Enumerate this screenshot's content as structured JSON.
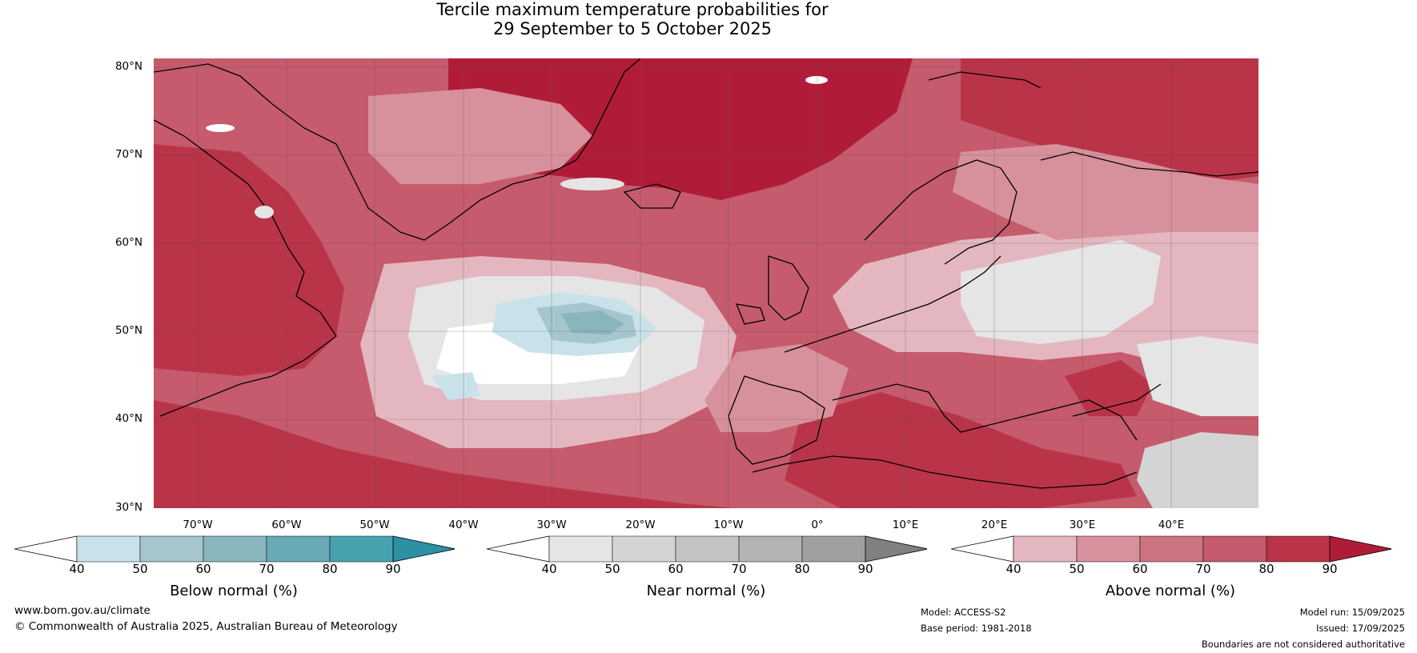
{
  "title_line1": "Tercile maximum temperature probabilities for",
  "title_line2": "29 September to 5 October 2025",
  "lat_labels": [
    "80°N",
    "70°N",
    "60°N",
    "50°N",
    "40°N",
    "30°N"
  ],
  "lon_labels": [
    "70°W",
    "60°W",
    "50°W",
    "40°W",
    "30°W",
    "20°W",
    "10°W",
    "0°",
    "10°E",
    "20°E",
    "30°E",
    "40°E"
  ],
  "colorbars": [
    {
      "label": "Below normal (%)",
      "ticks": [
        "40",
        "50",
        "60",
        "70",
        "80",
        "90"
      ],
      "colors": [
        "#ffffff",
        "#c9e2e9",
        "#a5c6cc",
        "#89b5bd",
        "#6aaab7",
        "#47a2b0",
        "#2d90a3"
      ]
    },
    {
      "label": "Near normal (%)",
      "ticks": [
        "40",
        "50",
        "60",
        "70",
        "80",
        "90"
      ],
      "colors": [
        "#ffffff",
        "#e5e5e5",
        "#d4d4d4",
        "#c4c4c4",
        "#b3b3b3",
        "#a0a0a0",
        "#808080"
      ]
    },
    {
      "label": "Above normal (%)",
      "ticks": [
        "40",
        "50",
        "60",
        "70",
        "80",
        "90"
      ],
      "colors": [
        "#ffffff",
        "#e4b7c0",
        "#d7919c",
        "#cc7380",
        "#c55b6c",
        "#b93448",
        "#b01c38"
      ]
    }
  ],
  "footer": {
    "website": "www.bom.gov.au/climate",
    "copyright": "© Commonwealth of Australia 2025, Australian Bureau of Meteorology",
    "model": "Model: ACCESS-S2",
    "base_period": "Base period: 1981-2018",
    "model_run": "Model run: 15/09/2025",
    "issued": "Issued: 17/09/2025",
    "disclaimer": "Boundaries are not considered authoritative"
  }
}
